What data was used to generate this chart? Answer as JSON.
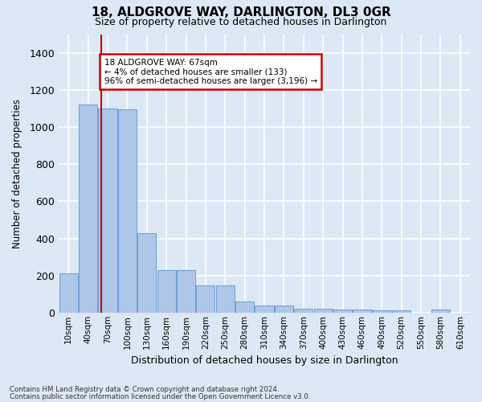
{
  "title": "18, ALDGROVE WAY, DARLINGTON, DL3 0GR",
  "subtitle": "Size of property relative to detached houses in Darlington",
  "xlabel": "Distribution of detached houses by size in Darlington",
  "ylabel": "Number of detached properties",
  "footer_line1": "Contains HM Land Registry data © Crown copyright and database right 2024.",
  "footer_line2": "Contains public sector information licensed under the Open Government Licence v3.0.",
  "annotation_title": "18 ALDGROVE WAY: 67sqm",
  "annotation_line1": "← 4% of detached houses are smaller (133)",
  "annotation_line2": "96% of semi-detached houses are larger (3,196) →",
  "bar_color": "#aec6e8",
  "bar_edge_color": "#6a9fd8",
  "vline_color": "#cc0000",
  "annotation_box_edge": "#cc0000",
  "annotation_box_face": "#ffffff",
  "background_color": "#dce8f5",
  "plot_bg_color": "#dce8f5",
  "categories": [
    "10sqm",
    "40sqm",
    "70sqm",
    "100sqm",
    "130sqm",
    "160sqm",
    "190sqm",
    "220sqm",
    "250sqm",
    "280sqm",
    "310sqm",
    "340sqm",
    "370sqm",
    "400sqm",
    "430sqm",
    "460sqm",
    "490sqm",
    "520sqm",
    "550sqm",
    "580sqm",
    "610sqm"
  ],
  "values": [
    210,
    1120,
    1100,
    1095,
    430,
    230,
    230,
    148,
    148,
    58,
    38,
    38,
    23,
    23,
    15,
    15,
    13,
    13,
    0,
    18,
    0
  ],
  "ylim": [
    0,
    1500
  ],
  "yticks": [
    0,
    200,
    400,
    600,
    800,
    1000,
    1200,
    1400
  ],
  "vline_x_index": 1.67,
  "figsize": [
    6.0,
    5.0
  ],
  "dpi": 100
}
